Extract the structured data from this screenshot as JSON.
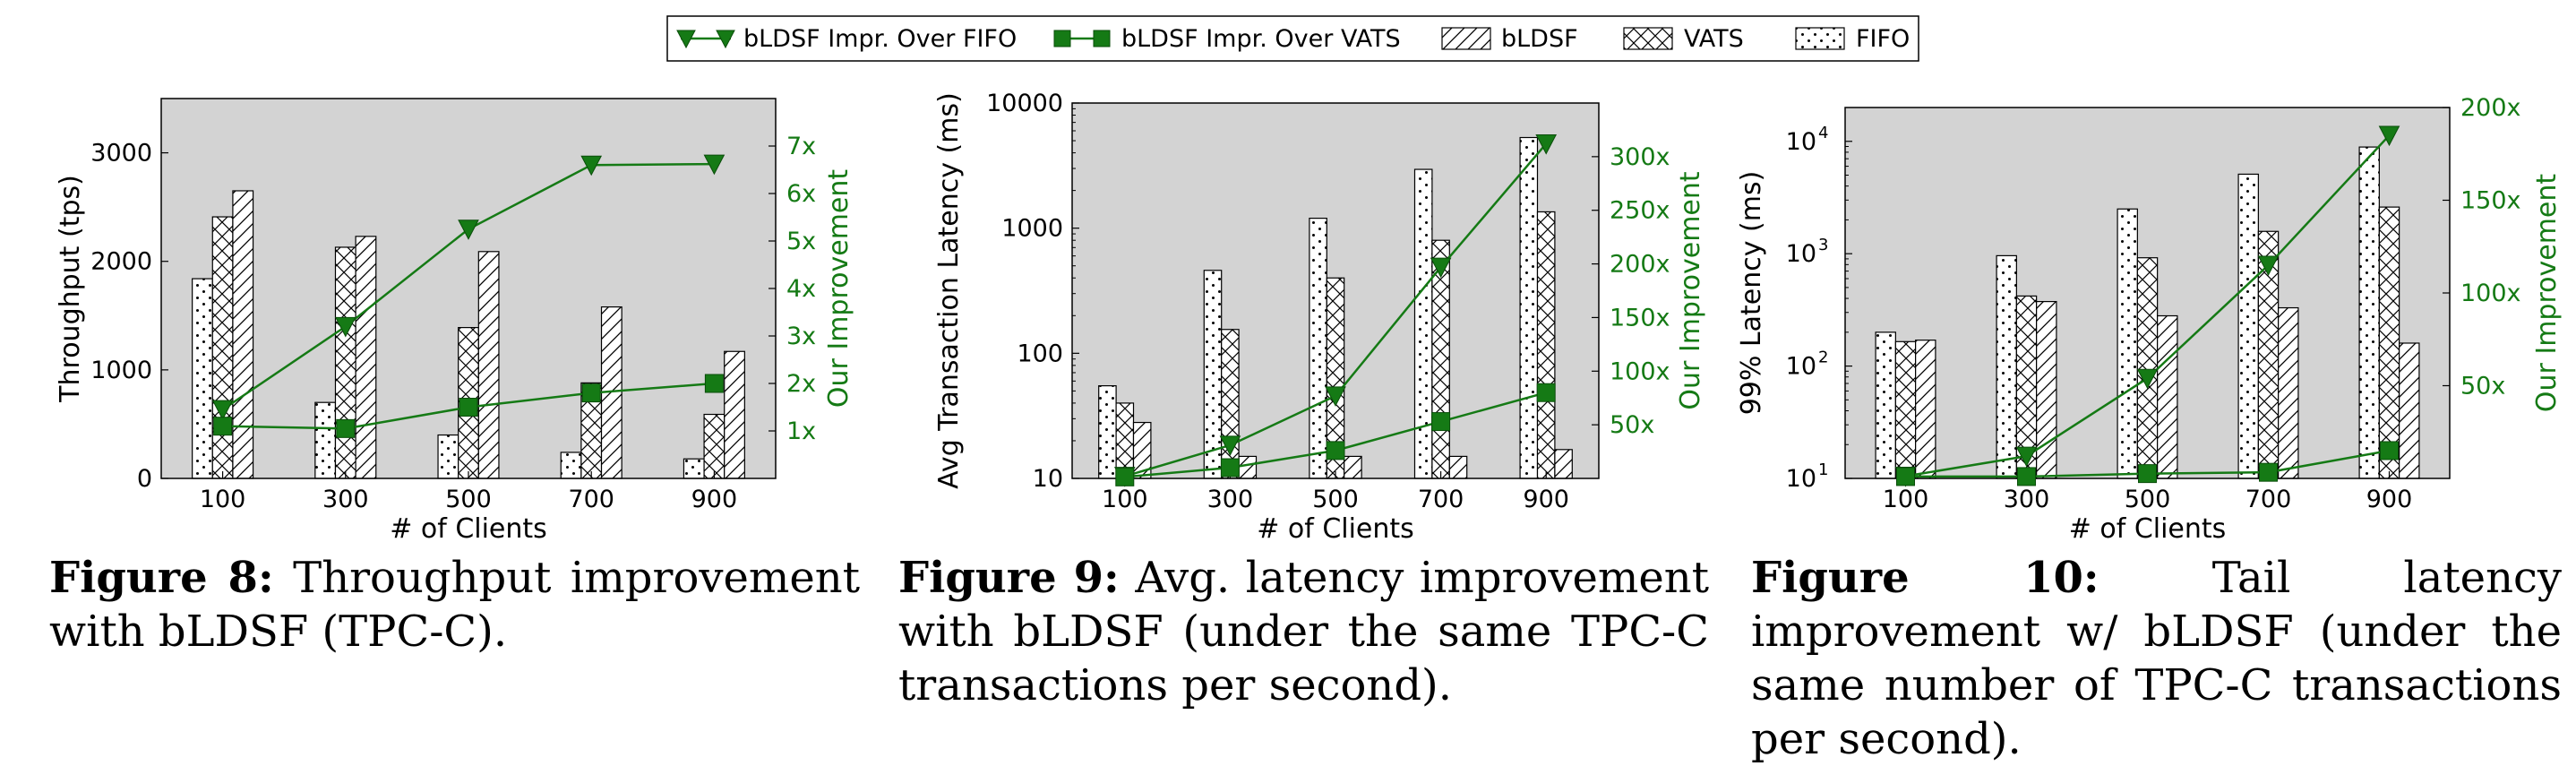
{
  "legend": {
    "items": [
      {
        "label": "bLDSF Impr. Over FIFO",
        "kind": "line-triangle"
      },
      {
        "label": "bLDSF Impr. Over VATS",
        "kind": "line-square"
      },
      {
        "label": "bLDSF",
        "kind": "hatch-diag"
      },
      {
        "label": "VATS",
        "kind": "hatch-cross"
      },
      {
        "label": "FIFO",
        "kind": "hatch-dots"
      }
    ]
  },
  "colors": {
    "line": "#157a15",
    "plot_bg": "#d3d3d3",
    "bar_fill": "#ffffff",
    "axis": "#000000"
  },
  "chart_data": [
    {
      "type": "bar",
      "categories": [
        "100",
        "300",
        "500",
        "700",
        "900"
      ],
      "xlabel": "# of Clients",
      "ylabel": "Throughput (tps)",
      "y2label": "Our Improvement",
      "yscale": "linear",
      "ylim": [
        0,
        3500
      ],
      "yticks": [
        0,
        1000,
        2000,
        3000
      ],
      "y2lim": [
        0,
        8
      ],
      "y2ticks": [
        1,
        2,
        3,
        4,
        5,
        6,
        7
      ],
      "y2ticklabels": [
        "1x",
        "2x",
        "3x",
        "4x",
        "5x",
        "6x",
        "7x"
      ],
      "series": [
        {
          "name": "FIFO",
          "values": [
            1840,
            700,
            400,
            240,
            180
          ]
        },
        {
          "name": "VATS",
          "values": [
            2410,
            2130,
            1390,
            880,
            590
          ]
        },
        {
          "name": "bLDSF",
          "values": [
            2650,
            2230,
            2090,
            1580,
            1170
          ]
        }
      ],
      "lines": [
        {
          "name": "bLDSF Impr. Over FIFO",
          "values": [
            1.45,
            3.2,
            5.25,
            6.6,
            6.62
          ]
        },
        {
          "name": "bLDSF Impr. Over VATS",
          "values": [
            1.1,
            1.05,
            1.5,
            1.8,
            2.0
          ]
        }
      ]
    },
    {
      "type": "bar",
      "categories": [
        "100",
        "300",
        "500",
        "700",
        "900"
      ],
      "xlabel": "# of Clients",
      "ylabel": "Avg Transaction Latency (ms)",
      "y2label": "Our Improvement",
      "yscale": "log",
      "ylim": [
        10,
        10000
      ],
      "yticks": [
        10,
        100,
        1000,
        10000
      ],
      "yticklabels": [
        "10",
        "100",
        "1000",
        "10000"
      ],
      "y2lim": [
        0,
        350
      ],
      "y2ticks": [
        50,
        100,
        150,
        200,
        250,
        300
      ],
      "y2ticklabels": [
        "50x",
        "100x",
        "150x",
        "200x",
        "250x",
        "300x"
      ],
      "series": [
        {
          "name": "FIFO",
          "values": [
            55,
            460,
            1200,
            2950,
            5300
          ]
        },
        {
          "name": "VATS",
          "values": [
            40,
            155,
            400,
            800,
            1350
          ]
        },
        {
          "name": "bLDSF",
          "values": [
            28,
            15,
            15,
            15,
            17
          ]
        }
      ],
      "lines": [
        {
          "name": "bLDSF Impr. Over FIFO",
          "values": [
            2,
            31,
            77,
            197,
            312
          ]
        },
        {
          "name": "bLDSF Impr. Over VATS",
          "values": [
            1.4,
            10,
            26,
            53,
            80
          ]
        }
      ]
    },
    {
      "type": "bar",
      "categories": [
        "100",
        "300",
        "500",
        "700",
        "900"
      ],
      "xlabel": "# of Clients",
      "ylabel": "99% Latency (ms)",
      "y2label": "Our Improvement",
      "yscale": "log",
      "ylim": [
        10,
        20000
      ],
      "yticks": [
        10,
        100,
        1000,
        10000
      ],
      "yticklabels": [
        "10",
        "10",
        "10",
        "10"
      ],
      "yticksup": [
        "1",
        "2",
        "3",
        "4"
      ],
      "y2lim": [
        0,
        200
      ],
      "y2ticks": [
        50,
        100,
        150,
        200
      ],
      "y2ticklabels": [
        "50x",
        "100x",
        "150x",
        "200x"
      ],
      "series": [
        {
          "name": "FIFO",
          "values": [
            200,
            960,
            2500,
            5100,
            8900
          ]
        },
        {
          "name": "VATS",
          "values": [
            165,
            420,
            920,
            1580,
            2600
          ]
        },
        {
          "name": "bLDSF",
          "values": [
            170,
            375,
            280,
            330,
            160
          ]
        }
      ],
      "lines": [
        {
          "name": "bLDSF Impr. Over FIFO",
          "values": [
            1.2,
            12,
            54,
            115,
            185
          ]
        },
        {
          "name": "bLDSF Impr. Over VATS",
          "values": [
            1,
            1,
            2.6,
            3.3,
            15
          ]
        }
      ]
    }
  ],
  "captions": [
    {
      "label": "Figure 8:",
      "text": "Throughput improvement with bLDSF (TPC-C)."
    },
    {
      "label": "Figure 9:",
      "text": "Avg. latency improvement with bLDSF (under the same TPC-C transactions per second)."
    },
    {
      "label": "Figure 10:",
      "text": "Tail latency improvement w/ bLDSF (under the same number of TPC-C transactions per second)."
    }
  ]
}
